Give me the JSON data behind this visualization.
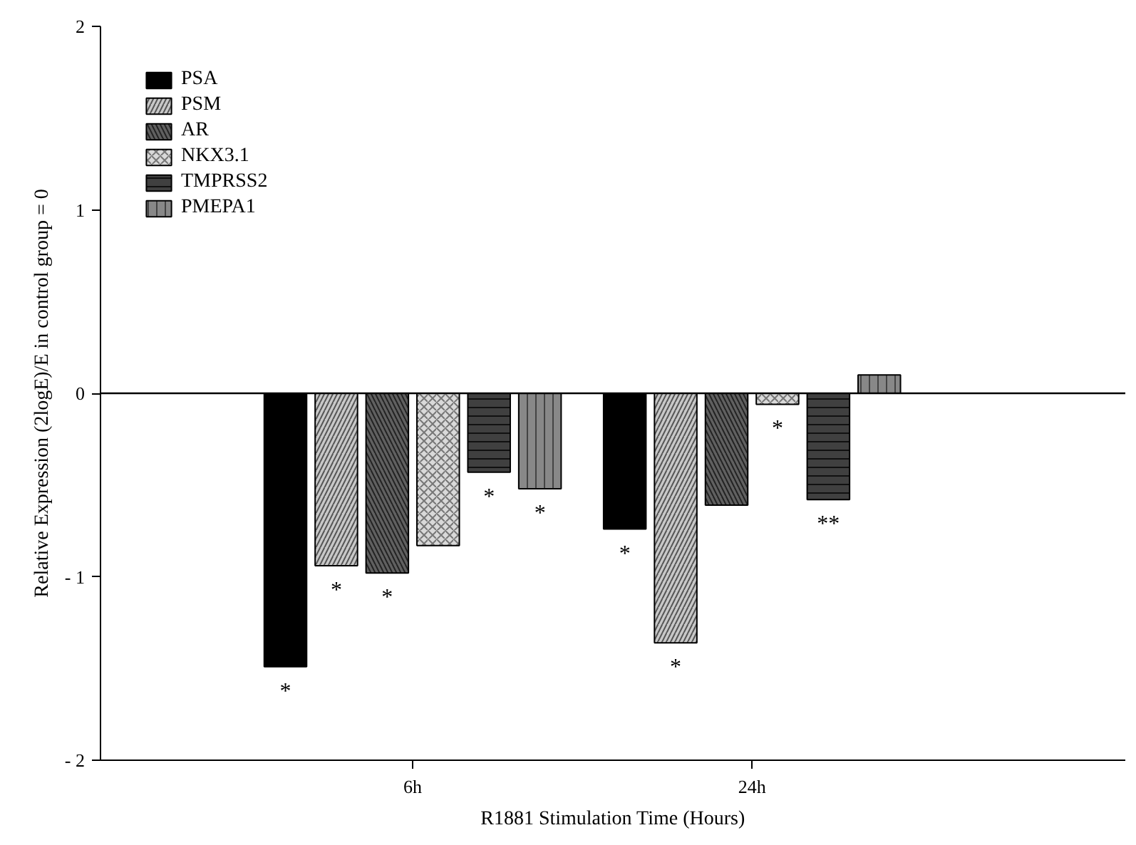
{
  "chart_data": {
    "type": "bar",
    "xlabel": "R1881 Stimulation Time (Hours)",
    "ylabel": "Relative Expression (2logE)/E in control group = 0",
    "categories": [
      "6h",
      "24h"
    ],
    "series": [
      {
        "name": "PSA",
        "color": "#000000",
        "values": [
          -1.49,
          -0.74
        ],
        "value_labels": [
          "*",
          "*"
        ]
      },
      {
        "name": "PSM",
        "color": "#c8c8c8",
        "values": [
          -0.94,
          -1.36
        ],
        "value_labels": [
          "*",
          "*"
        ]
      },
      {
        "name": "AR",
        "color": "#606060",
        "values": [
          -0.98,
          -0.61
        ],
        "value_labels": [
          "*",
          null
        ]
      },
      {
        "name": "NKX3.1",
        "color": "#d9d9d9",
        "values": [
          -0.83,
          -0.06
        ],
        "value_labels": [
          null,
          "*"
        ]
      },
      {
        "name": "TMPRSS2",
        "color": "#404040",
        "values": [
          -0.43,
          -0.58
        ],
        "value_labels": [
          "*",
          "**"
        ]
      },
      {
        "name": "PMEPA1",
        "color": "#888888",
        "values": [
          -0.52,
          0.1
        ],
        "value_labels": [
          "*",
          null
        ]
      }
    ],
    "ylim": [
      -2,
      2
    ],
    "yticks": [
      {
        "value": -2,
        "label": "- 2"
      },
      {
        "value": -1,
        "label": "- 1"
      },
      0,
      1,
      2
    ],
    "ref_lines": [
      {
        "axis": "y",
        "value": 0,
        "label": null,
        "color": "#000000"
      }
    ],
    "legend": "top left",
    "grid": false
  }
}
